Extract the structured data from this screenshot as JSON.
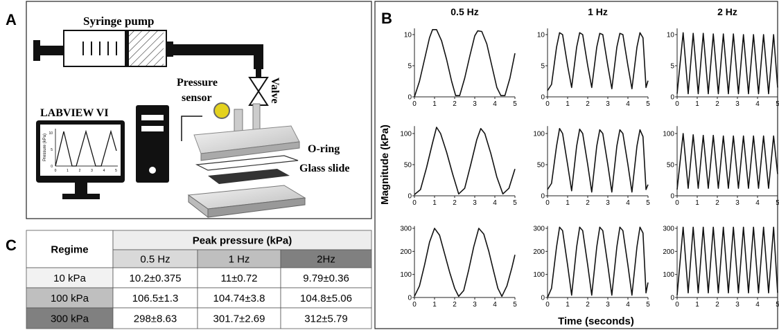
{
  "panel_a": {
    "letter": "A",
    "syringe": "Syringe pump",
    "valve": "Valve",
    "sensor": [
      "Pressure",
      "sensor"
    ],
    "labview": "LABVIEW VI",
    "oring": "O-ring",
    "glass": "Glass slide",
    "monitor": {
      "ylabel": "Pressure (kPa)",
      "yticks": [
        "0",
        "5",
        "10"
      ],
      "xticks": [
        "0",
        "1",
        "2",
        "3",
        "4",
        "5"
      ]
    }
  },
  "panel_b": {
    "letter": "B",
    "ylabel": "Magnitude (kPa)",
    "xlabel": "Time (seconds)"
  },
  "chart_data": [
    {
      "type": "line",
      "title": "0.5 Hz",
      "color": "#111111",
      "xlim": [
        0,
        5
      ],
      "xticks": [
        0,
        1,
        2,
        3,
        4,
        5
      ],
      "ylim": [
        0,
        11
      ],
      "yticks": [
        0,
        5,
        10
      ],
      "x": [
        0,
        0.25,
        0.5,
        0.75,
        0.9,
        1.1,
        1.35,
        1.6,
        1.85,
        2.05,
        2.25,
        2.5,
        2.75,
        3.0,
        3.15,
        3.35,
        3.6,
        3.85,
        4.1,
        4.3,
        4.5,
        4.75,
        5
      ],
      "values": [
        0,
        2.5,
        6,
        9.5,
        10.8,
        10.8,
        9,
        6,
        2.5,
        0.2,
        0.2,
        3,
        6.5,
        9.8,
        10.6,
        10.5,
        8.5,
        5,
        1.5,
        0.2,
        0.2,
        3,
        7
      ]
    },
    {
      "type": "line",
      "title": "1 Hz",
      "color": "#111111",
      "xlim": [
        0,
        5
      ],
      "xticks": [
        0,
        1,
        2,
        3,
        4,
        5
      ],
      "ylim": [
        0,
        11
      ],
      "yticks": [
        0,
        5,
        10
      ],
      "x": [
        0,
        0.2,
        0.45,
        0.6,
        0.75,
        1.0,
        1.2,
        1.45,
        1.6,
        1.75,
        2.0,
        2.2,
        2.45,
        2.6,
        2.75,
        3.0,
        3.2,
        3.45,
        3.6,
        3.75,
        4.0,
        4.2,
        4.45,
        4.6,
        4.75,
        4.9,
        5
      ],
      "values": [
        1,
        2,
        8,
        10.3,
        10,
        5,
        1.5,
        8,
        10.3,
        10,
        5,
        1.5,
        8,
        10.2,
        10,
        5,
        1.3,
        8,
        10.2,
        10,
        5,
        1.3,
        8,
        10.3,
        9.5,
        1.5,
        2.6
      ]
    },
    {
      "type": "line",
      "title": "2 Hz",
      "color": "#111111",
      "xlim": [
        0,
        5
      ],
      "xticks": [
        0,
        1,
        2,
        3,
        4,
        5
      ],
      "ylim": [
        0,
        11
      ],
      "yticks": [
        0,
        5,
        10
      ],
      "x": [
        0,
        0.3,
        0.55,
        0.8,
        1.05,
        1.3,
        1.55,
        1.8,
        2.05,
        2.3,
        2.55,
        2.8,
        3.05,
        3.3,
        3.55,
        3.8,
        4.05,
        4.3,
        4.55,
        4.8,
        5
      ],
      "values": [
        0.5,
        10.3,
        0.5,
        10.2,
        0.5,
        10.2,
        0.5,
        10.1,
        0.5,
        10.1,
        0.5,
        10.1,
        0.5,
        10,
        0.5,
        10,
        0.5,
        10,
        0.5,
        10,
        1.5
      ]
    },
    {
      "type": "line",
      "color": "#111111",
      "xlim": [
        0,
        5
      ],
      "xticks": [
        0,
        1,
        2,
        3,
        4,
        5
      ],
      "ylim": [
        0,
        112
      ],
      "yticks": [
        0,
        50,
        100
      ],
      "x": [
        0,
        0.3,
        0.6,
        0.9,
        1.1,
        1.3,
        1.6,
        1.9,
        2.2,
        2.5,
        2.8,
        3.1,
        3.3,
        3.5,
        3.8,
        4.1,
        4.4,
        4.7,
        5
      ],
      "values": [
        2,
        10,
        45,
        85,
        110,
        100,
        70,
        35,
        3,
        12,
        50,
        90,
        108,
        100,
        68,
        30,
        3,
        12,
        43
      ]
    },
    {
      "type": "line",
      "color": "#111111",
      "xlim": [
        0,
        5
      ],
      "xticks": [
        0,
        1,
        2,
        3,
        4,
        5
      ],
      "ylim": [
        0,
        112
      ],
      "yticks": [
        0,
        50,
        100
      ],
      "x": [
        0,
        0.2,
        0.45,
        0.6,
        0.75,
        1.0,
        1.2,
        1.45,
        1.6,
        1.75,
        2.0,
        2.2,
        2.45,
        2.6,
        2.75,
        3.0,
        3.2,
        3.45,
        3.6,
        3.75,
        4.0,
        4.2,
        4.45,
        4.6,
        4.75,
        4.9,
        5
      ],
      "values": [
        10,
        20,
        80,
        108,
        100,
        50,
        8,
        80,
        107,
        100,
        50,
        6,
        80,
        106,
        100,
        50,
        6,
        80,
        106,
        100,
        50,
        6,
        80,
        106,
        95,
        10,
        18
      ]
    },
    {
      "type": "line",
      "color": "#111111",
      "xlim": [
        0,
        5
      ],
      "xticks": [
        0,
        1,
        2,
        3,
        4,
        5
      ],
      "ylim": [
        0,
        112
      ],
      "yticks": [
        0,
        50,
        100
      ],
      "x": [
        0,
        0.3,
        0.55,
        0.8,
        1.05,
        1.3,
        1.55,
        1.8,
        2.05,
        2.3,
        2.55,
        2.8,
        3.05,
        3.3,
        3.55,
        3.8,
        4.05,
        4.3,
        4.55,
        4.8,
        5
      ],
      "values": [
        10,
        100,
        12,
        98,
        12,
        97,
        12,
        97,
        12,
        96,
        12,
        96,
        12,
        96,
        12,
        96,
        12,
        96,
        12,
        96,
        35
      ]
    },
    {
      "type": "line",
      "color": "#111111",
      "xlim": [
        0,
        5
      ],
      "xticks": [
        0,
        1,
        2,
        3,
        4,
        5
      ],
      "ylim": [
        0,
        310
      ],
      "yticks": [
        0,
        100,
        200,
        300
      ],
      "x": [
        0,
        0.25,
        0.5,
        0.75,
        1.0,
        1.25,
        1.5,
        1.75,
        2.0,
        2.2,
        2.45,
        2.7,
        2.95,
        3.2,
        3.45,
        3.7,
        3.95,
        4.15,
        4.35,
        4.6,
        4.85,
        5
      ],
      "values": [
        5,
        50,
        140,
        240,
        300,
        270,
        190,
        110,
        40,
        5,
        30,
        120,
        220,
        300,
        275,
        200,
        110,
        40,
        5,
        50,
        130,
        185
      ]
    },
    {
      "type": "line",
      "color": "#111111",
      "xlim": [
        0,
        5
      ],
      "xticks": [
        0,
        1,
        2,
        3,
        4,
        5
      ],
      "ylim": [
        0,
        310
      ],
      "yticks": [
        0,
        100,
        200,
        300
      ],
      "x": [
        0,
        0.2,
        0.45,
        0.6,
        0.75,
        1.0,
        1.2,
        1.45,
        1.6,
        1.75,
        2.0,
        2.2,
        2.45,
        2.6,
        2.75,
        3.0,
        3.2,
        3.45,
        3.6,
        3.75,
        4.0,
        4.2,
        4.45,
        4.6,
        4.75,
        4.9,
        5
      ],
      "values": [
        0,
        40,
        220,
        305,
        290,
        140,
        10,
        220,
        305,
        290,
        140,
        10,
        220,
        305,
        290,
        140,
        10,
        220,
        305,
        290,
        140,
        10,
        220,
        305,
        280,
        20,
        65
      ]
    },
    {
      "type": "line",
      "color": "#111111",
      "xlim": [
        0,
        5
      ],
      "xticks": [
        0,
        1,
        2,
        3,
        4,
        5
      ],
      "ylim": [
        0,
        310
      ],
      "yticks": [
        0,
        100,
        200,
        300
      ],
      "x": [
        0,
        0.3,
        0.55,
        0.8,
        1.05,
        1.3,
        1.55,
        1.8,
        2.05,
        2.3,
        2.55,
        2.8,
        3.05,
        3.3,
        3.55,
        3.8,
        4.05,
        4.3,
        4.55,
        4.8,
        5
      ],
      "values": [
        10,
        305,
        20,
        305,
        20,
        305,
        20,
        305,
        20,
        305,
        20,
        305,
        20,
        305,
        20,
        305,
        20,
        305,
        20,
        305,
        20
      ]
    }
  ],
  "table": {
    "letter": "C",
    "regime_header": "Regime",
    "group_header": "Peak pressure (kPa)",
    "columns": [
      "0.5 Hz",
      "1 Hz",
      "2Hz"
    ],
    "rows": [
      [
        "10 kPa",
        "10.2±0.375",
        "11±0.72",
        "9.79±0.36"
      ],
      [
        "100 kPa",
        "106.5±1.3",
        "104.74±3.8",
        "104.8±5.06"
      ],
      [
        "300 kPa",
        "298±8.63",
        "301.7±2.69",
        "312±5.79"
      ]
    ]
  }
}
